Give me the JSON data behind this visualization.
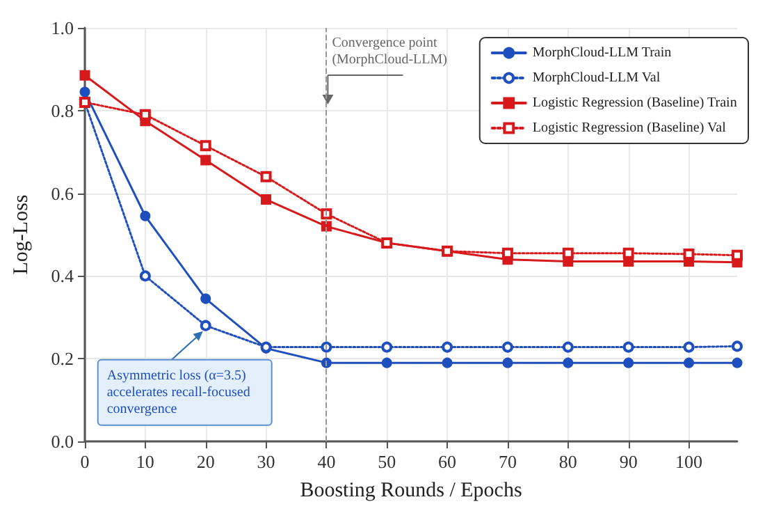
{
  "chart_data": {
    "type": "line",
    "xlabel": "Boosting Rounds / Epochs",
    "ylabel": "Log-Loss",
    "xlim": [
      0,
      108
    ],
    "xticks": [
      0,
      10,
      20,
      30,
      40,
      50,
      60,
      70,
      80,
      90,
      100
    ],
    "ylim": [
      0,
      1
    ],
    "yticks": [
      {
        "value": 0,
        "label": "0.0"
      },
      {
        "value": 0.2,
        "label": "0.2"
      },
      {
        "value": 0.4,
        "label": "0.4"
      },
      {
        "value": 0.6,
        "label": "0.6"
      },
      {
        "value": 0.8,
        "label": "0.8"
      },
      {
        "value": 1,
        "label": "1.0"
      }
    ],
    "grid": true,
    "legend": "top right",
    "series": [
      {
        "name": "MorphCloud-LLM Train",
        "color": "#1f4fbf",
        "marker": "circle",
        "line_style": "solid",
        "x": [
          0,
          10,
          20,
          30,
          40,
          50,
          60,
          70,
          80,
          90,
          100,
          108
        ],
        "values": [
          0.845,
          0.545,
          0.345,
          0.225,
          0.19,
          0.19,
          0.19,
          0.19,
          0.19,
          0.19,
          0.19,
          0.19
        ]
      },
      {
        "name": "MorphCloud-LLM Val",
        "color": "#1f4fbf",
        "marker": "circle",
        "line_style": "dotted",
        "x": [
          0,
          10,
          20,
          30,
          40,
          50,
          60,
          70,
          80,
          90,
          100,
          108
        ],
        "values": [
          0.82,
          0.4,
          0.28,
          0.228,
          0.228,
          0.228,
          0.228,
          0.228,
          0.228,
          0.228,
          0.228,
          0.23
        ]
      },
      {
        "name": "Logistic Regression (Baseline) Train",
        "color": "#d7191c",
        "marker": "square",
        "line_style": "solid",
        "x": [
          0,
          10,
          20,
          30,
          40,
          50,
          60,
          70,
          80,
          90,
          100,
          108
        ],
        "values": [
          0.885,
          0.775,
          0.68,
          0.585,
          0.52,
          0.48,
          0.46,
          0.44,
          0.435,
          0.435,
          0.435,
          0.433
        ]
      },
      {
        "name": "Logistic Regression (Baseline) Val",
        "color": "#d7191c",
        "marker": "square",
        "line_style": "dotted",
        "x": [
          0,
          10,
          20,
          30,
          40,
          50,
          60,
          70,
          80,
          90,
          100,
          108
        ],
        "values": [
          0.82,
          0.79,
          0.715,
          0.64,
          0.55,
          0.48,
          0.46,
          0.455,
          0.455,
          0.455,
          0.453,
          0.45
        ]
      }
    ],
    "ref_lines": [
      {
        "axis": "x",
        "value": 40,
        "label": "Convergence point (MorphCloud-LLM)",
        "color": "#999999",
        "line_style": "dashed"
      }
    ],
    "annotations": [
      {
        "text": "Asymmetric loss (α=3.5) accelerates recall-focused convergence",
        "x": 20,
        "y": 0.28
      }
    ]
  }
}
